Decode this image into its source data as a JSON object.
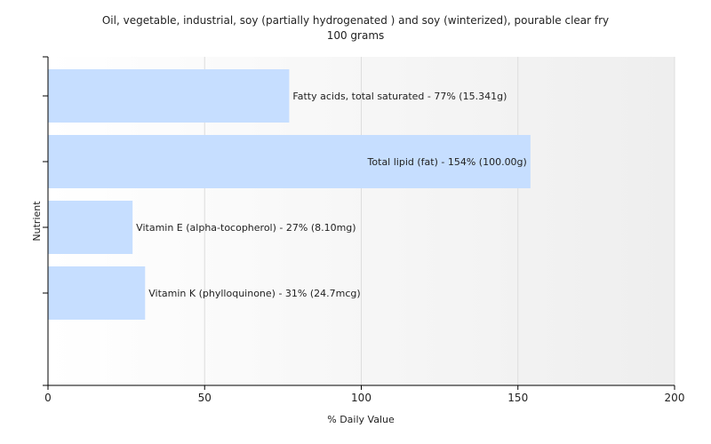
{
  "chart_data": {
    "type": "bar",
    "orientation": "horizontal",
    "title": "Oil, vegetable, industrial, soy (partially hydrogenated ) and soy (winterized), pourable clear fry",
    "subtitle": "100 grams",
    "xlabel": "% Daily Value",
    "ylabel": "Nutrient",
    "xlim": [
      0,
      200
    ],
    "xticks": [
      0,
      50,
      100,
      150,
      200
    ],
    "grid": true,
    "categories": [
      "Fatty acids, total saturated",
      "Total lipid (fat)",
      "Vitamin E (alpha-tocopherol)",
      "Vitamin K (phylloquinone)"
    ],
    "values": [
      77,
      154,
      27,
      31
    ],
    "labels": [
      "Fatty acids, total saturated - 77% (15.341g)",
      "Total lipid (fat) - 154% (100.00g)",
      "Vitamin E (alpha-tocopherol) - 27% (8.10mg)",
      "Vitamin K (phylloquinone) - 31% (24.7mcg)"
    ],
    "bar_color": "#c6deff"
  }
}
